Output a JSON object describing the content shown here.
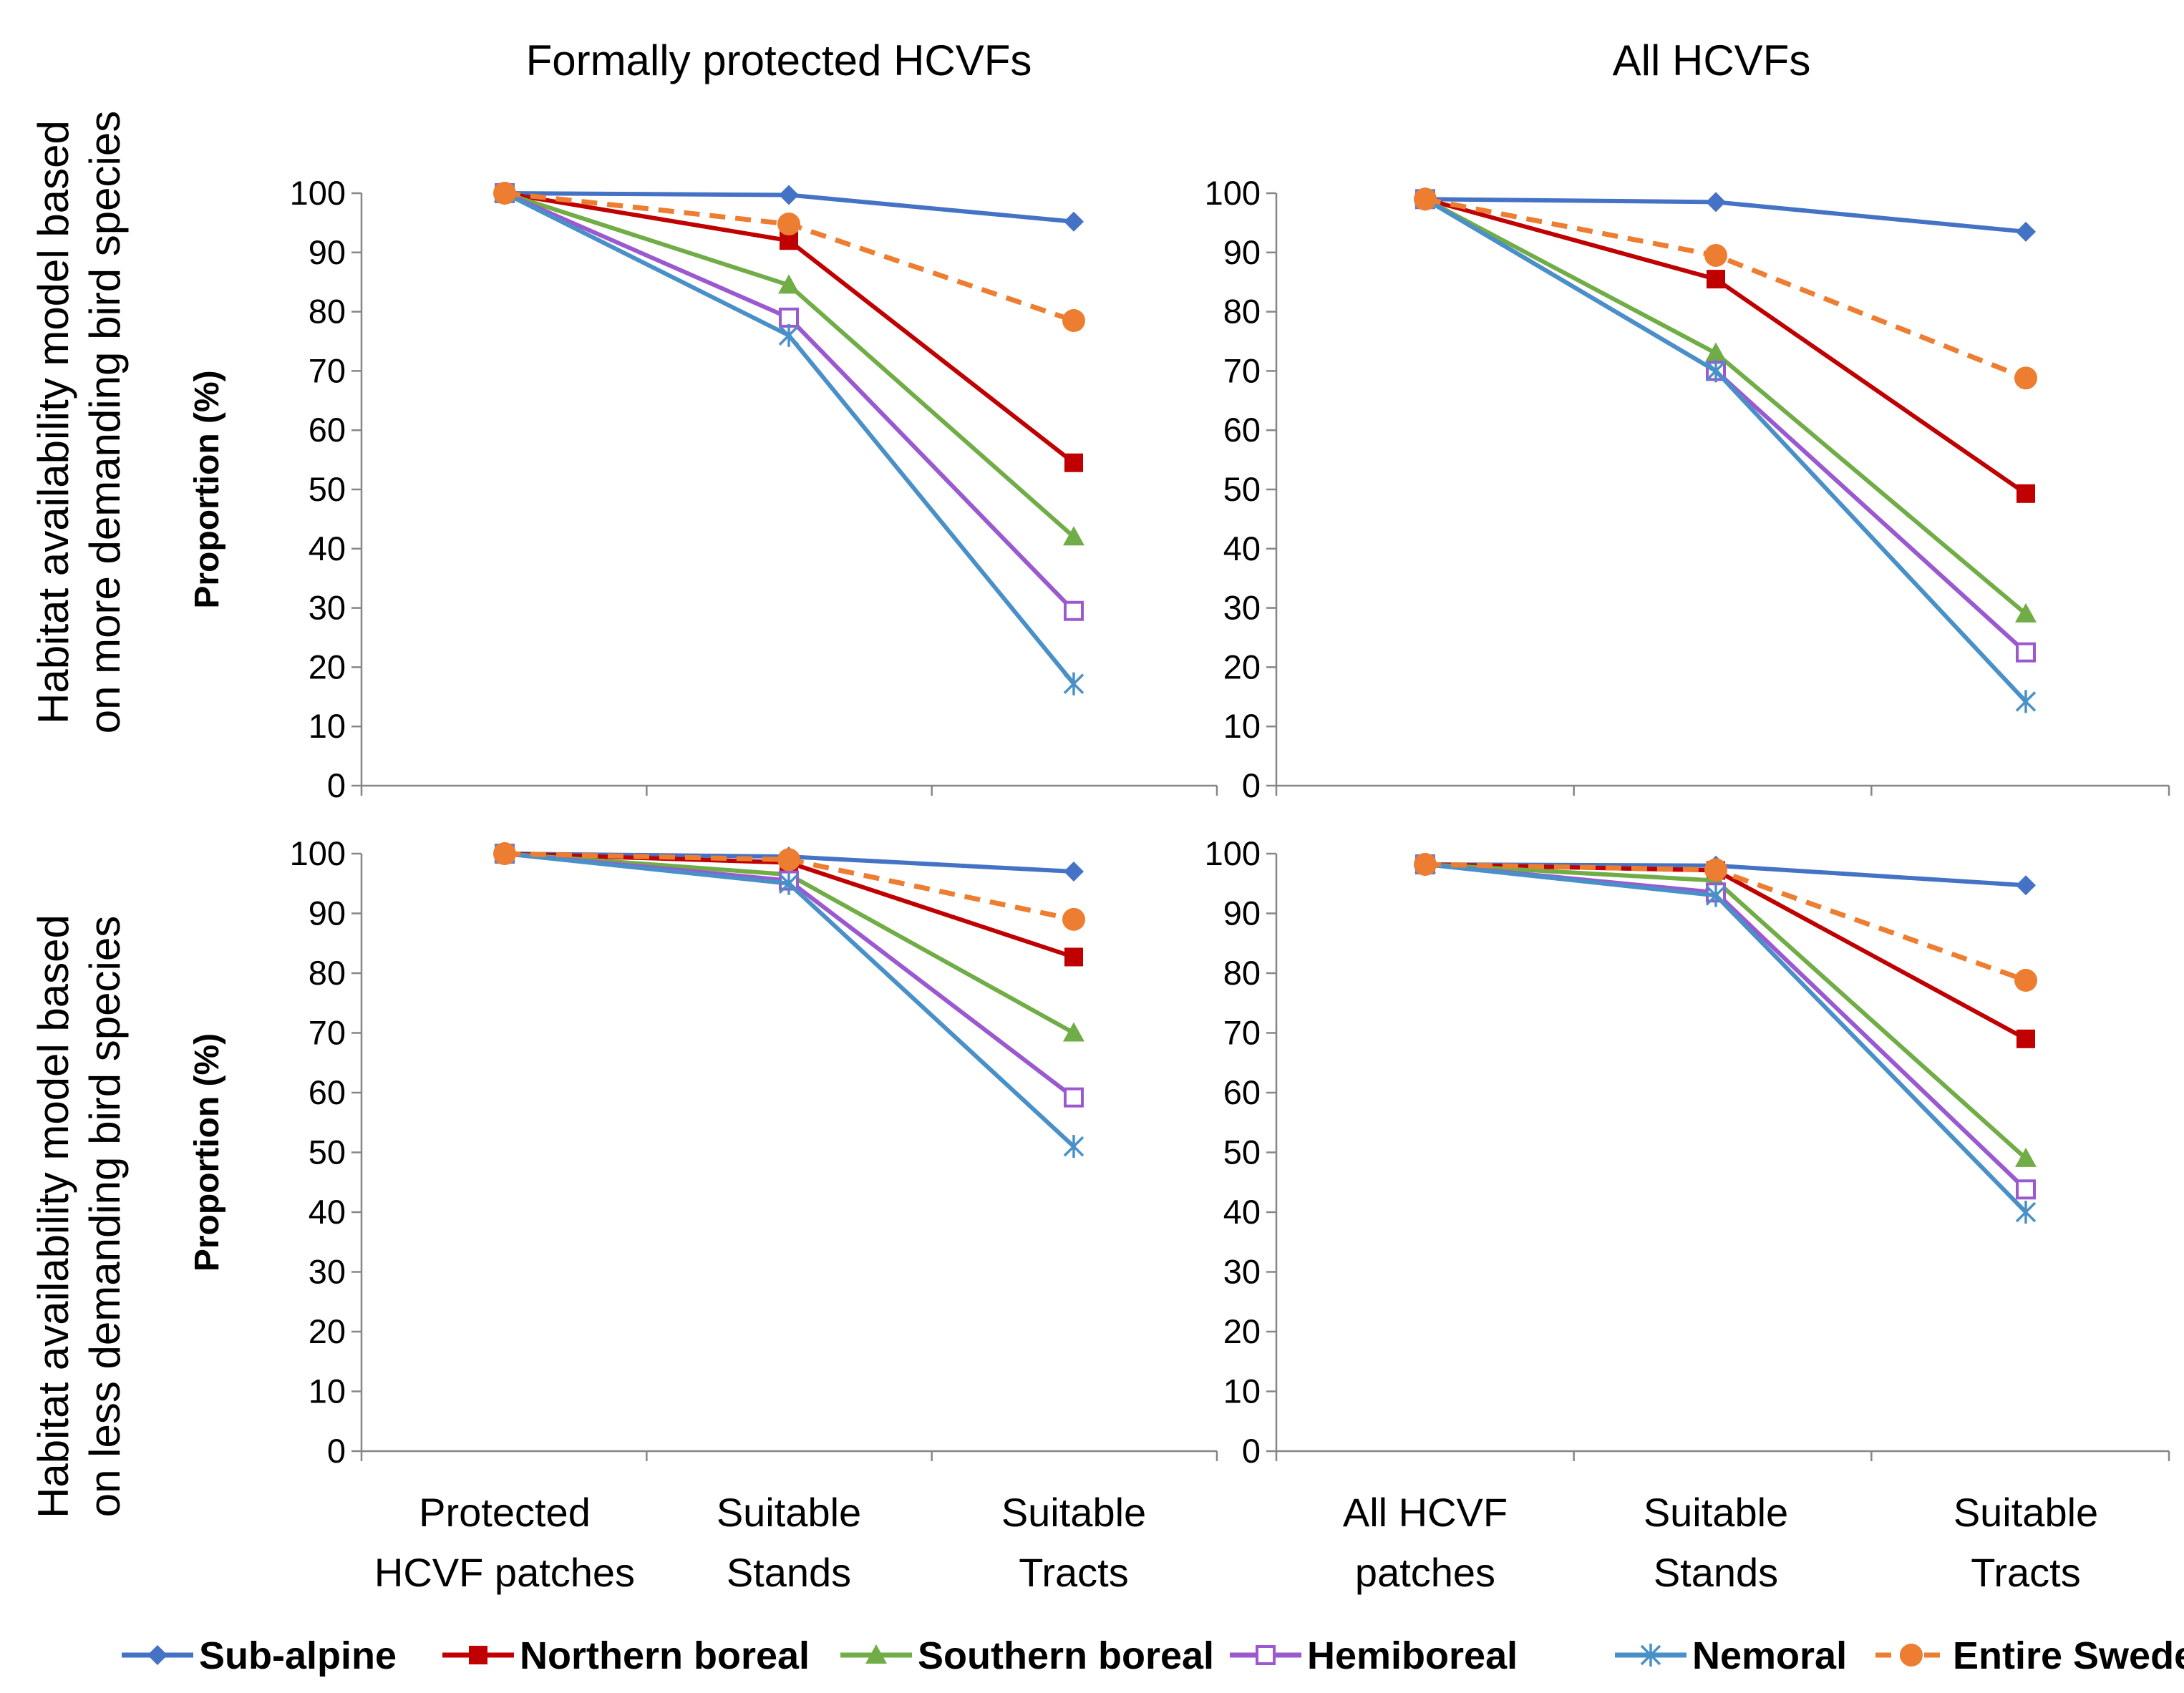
{
  "chart_data": {
    "type": "line",
    "column_titles": [
      "Formally protected HCVFs",
      "All HCVFs"
    ],
    "row_titles": [
      [
        "Habitat availability model based",
        "on more demanding bird species"
      ],
      [
        "Habitat availability model based",
        "on less demanding bird species"
      ]
    ],
    "ylabel": "Proportion (%)",
    "ylim": [
      0,
      100
    ],
    "yticks": [
      "0",
      "10",
      "20",
      "30",
      "40",
      "50",
      "60",
      "70",
      "80",
      "90",
      "100"
    ],
    "series_meta": [
      {
        "name": "Sub-alpine",
        "color": "#4472C4",
        "marker": "diamond",
        "dashed": false
      },
      {
        "name": "Northern boreal",
        "color": "#C00000",
        "marker": "square",
        "dashed": false
      },
      {
        "name": "Southern boreal",
        "color": "#70AD47",
        "marker": "triangle",
        "dashed": false
      },
      {
        "name": "Hemiboreal",
        "color": "#9B59D0",
        "marker": "open-square",
        "dashed": false
      },
      {
        "name": "Nemoral",
        "color": "#4A90C8",
        "marker": "asterisk",
        "dashed": false
      },
      {
        "name": "Entire Sweden",
        "color": "#ED7D31",
        "marker": "circle",
        "dashed": true
      }
    ],
    "panels": [
      {
        "column": 0,
        "row": 0,
        "categories": [],
        "values": [
          [
            100,
            99.7,
            95.2
          ],
          [
            100,
            92,
            54.5
          ],
          [
            100,
            84.5,
            42
          ],
          [
            100,
            79,
            29.5
          ],
          [
            100,
            76,
            17.2
          ],
          [
            100,
            94.8,
            78.5
          ]
        ]
      },
      {
        "column": 1,
        "row": 0,
        "categories": [],
        "values": [
          [
            99,
            98.5,
            93.5
          ],
          [
            99,
            85.5,
            49.3
          ],
          [
            99,
            73,
            29
          ],
          [
            99,
            70,
            22.5
          ],
          [
            99,
            70,
            14.2
          ],
          [
            99,
            89.5,
            68.8
          ]
        ]
      },
      {
        "column": 0,
        "row": 1,
        "categories": [
          [
            "Protected",
            "HCVF patches"
          ],
          [
            "Suitable",
            "Stands"
          ],
          [
            "Suitable",
            "Tracts"
          ]
        ],
        "values": [
          [
            100,
            99.5,
            97
          ],
          [
            100,
            98.5,
            82.7
          ],
          [
            100,
            96.5,
            70
          ],
          [
            100,
            95.5,
            59.2
          ],
          [
            100,
            95,
            51
          ],
          [
            100,
            99,
            89
          ]
        ]
      },
      {
        "column": 1,
        "row": 1,
        "categories": [
          [
            "All HCVF",
            "patches"
          ],
          [
            "Suitable",
            "Stands"
          ],
          [
            "Suitable",
            "Tracts"
          ]
        ],
        "values": [
          [
            98.2,
            98,
            94.7
          ],
          [
            98.2,
            97.2,
            69
          ],
          [
            98.2,
            95.5,
            49
          ],
          [
            98.2,
            93.5,
            43.8
          ],
          [
            98.2,
            93,
            40
          ],
          [
            98.2,
            97.3,
            78.8
          ]
        ]
      }
    ],
    "legend_position": "bottom"
  }
}
